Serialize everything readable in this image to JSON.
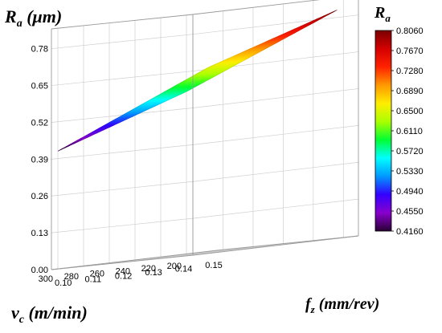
{
  "chart_data": {
    "type": "surface3d",
    "title": "",
    "z_axis": {
      "label": "R",
      "label_sub": "a",
      "label_unit": "(μm)",
      "ticks": [
        "0.00",
        "0.13",
        "0.26",
        "0.39",
        "0.52",
        "0.65",
        "0.78"
      ],
      "range": [
        0.0,
        0.85
      ]
    },
    "x_axis": {
      "label": "v",
      "label_sub": "c",
      "label_unit": "(m/min)",
      "ticks": [
        "200",
        "220",
        "240",
        "260",
        "280",
        "300"
      ],
      "range": [
        195,
        305
      ]
    },
    "y_axis": {
      "label": "f",
      "label_sub": "z",
      "label_unit": "(mm/rev)",
      "ticks": [
        "0.10",
        "0.11",
        "0.12",
        "0.13",
        "0.14",
        "0.15"
      ],
      "range": [
        0.1,
        0.155
      ]
    },
    "surface_corners": [
      {
        "vc": 200,
        "fz": 0.15,
        "Ra": 0.806
      },
      {
        "vc": 200,
        "fz": 0.1,
        "Ra": 0.58
      },
      {
        "vc": 300,
        "fz": 0.15,
        "Ra": 0.65
      },
      {
        "vc": 300,
        "fz": 0.1,
        "Ra": 0.416
      }
    ],
    "colorbar": {
      "title": "R",
      "title_sub": "a",
      "min": 0.416,
      "max": 0.806,
      "ticks": [
        "0.8060",
        "0.7670",
        "0.7280",
        "0.6890",
        "0.6500",
        "0.6110",
        "0.5720",
        "0.5330",
        "0.4940",
        "0.4550",
        "0.4160"
      ],
      "colors": [
        "#2a0033",
        "#8800cc",
        "#3300ff",
        "#0099ff",
        "#00ffff",
        "#00ff33",
        "#aaff00",
        "#ffee00",
        "#ff9900",
        "#ff2200",
        "#d40000",
        "#7a0000"
      ]
    },
    "grid": true
  }
}
